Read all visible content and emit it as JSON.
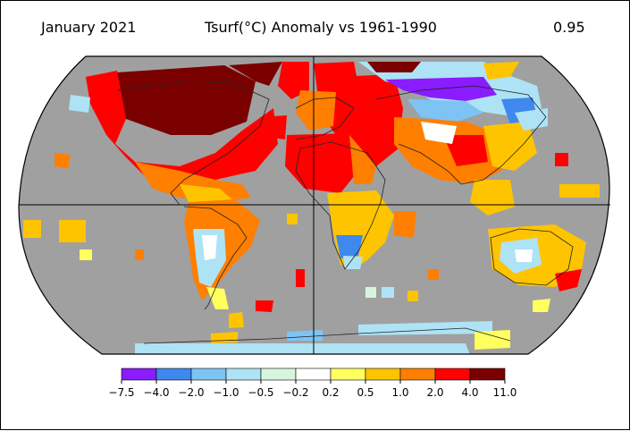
{
  "header": {
    "month": "January 2021",
    "title": "Tsurf(°C) Anomaly vs 1961-1990",
    "global_mean": "0.95"
  },
  "map": {
    "projection": "Robinson",
    "background_color": "#a0a0a0",
    "outline_color": "#000000",
    "gridlines": "equator and prime meridian"
  },
  "colorbar": {
    "ticks": [
      "−7.5",
      "−4.0",
      "−2.0",
      "−1.0",
      "−0.5",
      "−0.2",
      "0.2",
      "0.5",
      "1.0",
      "2.0",
      "4.0",
      "11.0"
    ],
    "bins": [
      {
        "color": "#8a1cff"
      },
      {
        "color": "#3e88ee"
      },
      {
        "color": "#7dc4f5"
      },
      {
        "color": "#aee3f5"
      },
      {
        "color": "#d7f5dc"
      },
      {
        "color": "#ffffff"
      },
      {
        "color": "#ffff5e"
      },
      {
        "color": "#ffc400"
      },
      {
        "color": "#ff7f00"
      },
      {
        "color": "#ff0000"
      },
      {
        "color": "#7a0000"
      }
    ]
  },
  "chart_data": {
    "type": "heatmap",
    "title": "Tsurf(°C) Anomaly vs 1961-1990",
    "period": "January 2021",
    "global_mean_anomaly": 0.95,
    "units": "°C",
    "scale_boundaries": [
      -7.5,
      -4.0,
      -2.0,
      -1.0,
      -0.5,
      -0.2,
      0.2,
      0.5,
      1.0,
      2.0,
      4.0,
      11.0
    ]
  }
}
